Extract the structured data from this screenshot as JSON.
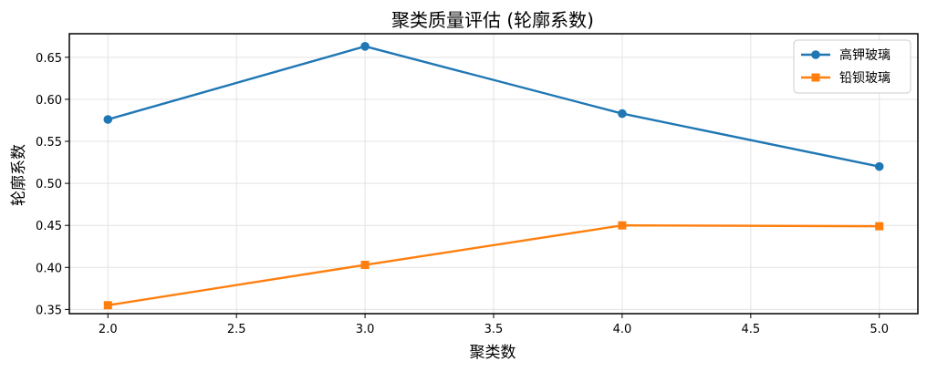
{
  "chart_data": {
    "type": "line",
    "title": "聚类质量评估 (轮廓系数)",
    "xlabel": "聚类数",
    "ylabel": "轮廓系数",
    "x": [
      2.0,
      3.0,
      4.0,
      5.0
    ],
    "xlim": [
      1.85,
      5.15
    ],
    "ylim": [
      0.345,
      0.678
    ],
    "xticks": [
      2.0,
      2.5,
      3.0,
      3.5,
      4.0,
      4.5,
      5.0
    ],
    "xtick_labels": [
      "2.0",
      "2.5",
      "3.0",
      "3.5",
      "4.0",
      "4.5",
      "5.0"
    ],
    "yticks": [
      0.35,
      0.4,
      0.45,
      0.5,
      0.55,
      0.6,
      0.65
    ],
    "ytick_labels": [
      "0.35",
      "0.40",
      "0.45",
      "0.50",
      "0.55",
      "0.60",
      "0.65"
    ],
    "grid": true,
    "legend_position": "top-right",
    "series": [
      {
        "name": "高钾玻璃",
        "values": [
          0.576,
          0.663,
          0.583,
          0.52
        ],
        "color": "#1f77b4",
        "marker": "circle"
      },
      {
        "name": "铅钡玻璃",
        "values": [
          0.355,
          0.403,
          0.45,
          0.449
        ],
        "color": "#ff7f0e",
        "marker": "square"
      }
    ]
  }
}
